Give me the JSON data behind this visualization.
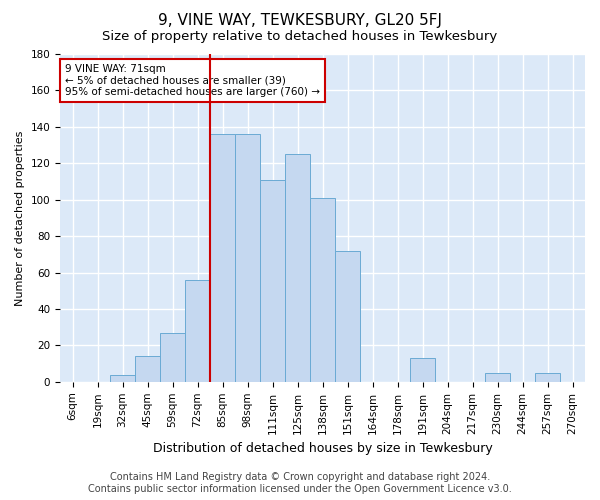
{
  "title": "9, VINE WAY, TEWKESBURY, GL20 5FJ",
  "subtitle": "Size of property relative to detached houses in Tewkesbury",
  "xlabel": "Distribution of detached houses by size in Tewkesbury",
  "ylabel": "Number of detached properties",
  "footer_line1": "Contains HM Land Registry data © Crown copyright and database right 2024.",
  "footer_line2": "Contains public sector information licensed under the Open Government Licence v3.0.",
  "bin_labels": [
    "6sqm",
    "19sqm",
    "32sqm",
    "45sqm",
    "59sqm",
    "72sqm",
    "85sqm",
    "98sqm",
    "111sqm",
    "125sqm",
    "138sqm",
    "151sqm",
    "164sqm",
    "178sqm",
    "191sqm",
    "204sqm",
    "217sqm",
    "230sqm",
    "244sqm",
    "257sqm",
    "270sqm"
  ],
  "bar_values": [
    0,
    0,
    4,
    14,
    27,
    56,
    136,
    136,
    111,
    125,
    101,
    72,
    0,
    0,
    13,
    0,
    0,
    5,
    0,
    5,
    0
  ],
  "bar_color": "#c5d8f0",
  "bar_edge_color": "#6aaad4",
  "vline_x_index": 5,
  "vline_color": "#cc0000",
  "annotation_text": "9 VINE WAY: 71sqm\n← 5% of detached houses are smaller (39)\n95% of semi-detached houses are larger (760) →",
  "annotation_box_color": "#ffffff",
  "annotation_box_edge": "#cc0000",
  "ylim": [
    0,
    180
  ],
  "yticks": [
    0,
    20,
    40,
    60,
    80,
    100,
    120,
    140,
    160,
    180
  ],
  "background_color": "#dce9f8",
  "grid_color": "#ffffff",
  "title_fontsize": 11,
  "subtitle_fontsize": 9.5,
  "xlabel_fontsize": 9,
  "ylabel_fontsize": 8,
  "tick_fontsize": 7.5,
  "footer_fontsize": 7,
  "ann_fontsize": 7.5
}
